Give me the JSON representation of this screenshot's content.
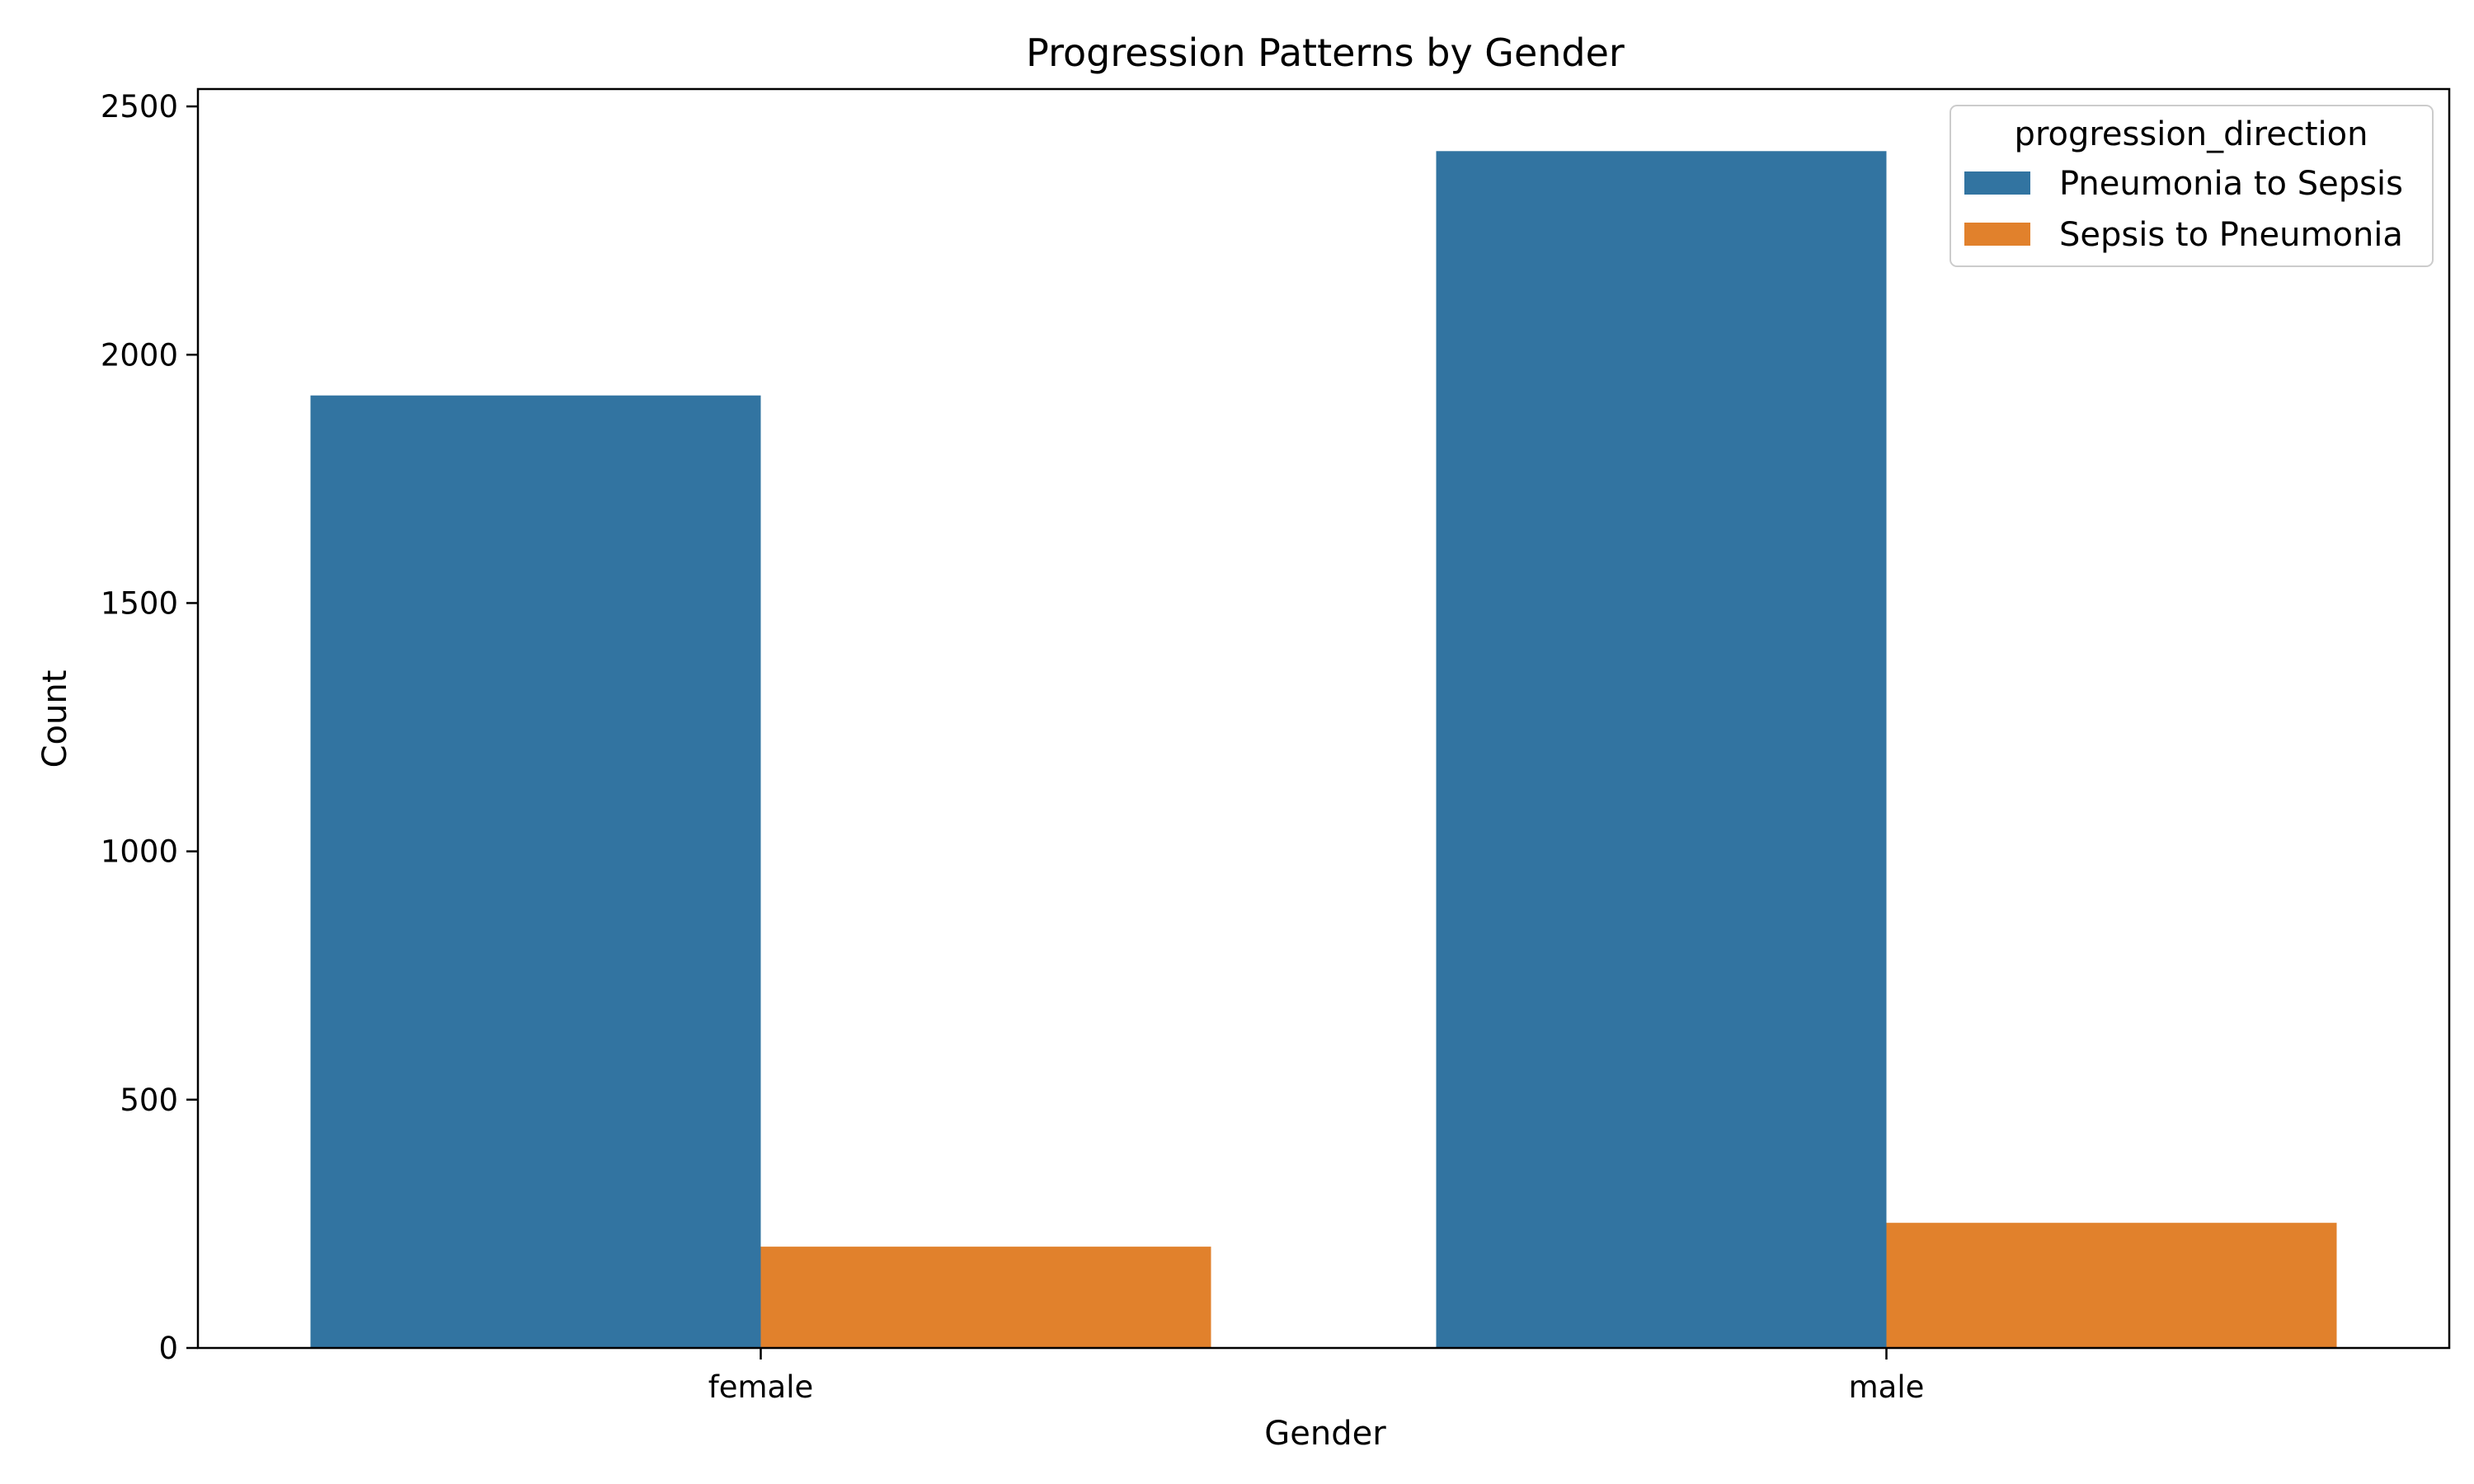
{
  "chart_data": {
    "type": "bar",
    "title": "Progression Patterns by Gender",
    "xlabel": "Gender",
    "ylabel": "Count",
    "categories": [
      "female",
      "male"
    ],
    "series": [
      {
        "name": "Pneumonia to Sepsis",
        "color": "#3274a1",
        "values": [
          1918,
          2410
        ]
      },
      {
        "name": "Sepsis to Pneumonia",
        "color": "#e1812c",
        "values": [
          204,
          252
        ]
      }
    ],
    "ylim": [
      0,
      2535
    ],
    "yticks": [
      "0",
      "500",
      "1000",
      "1500",
      "2000",
      "2500"
    ],
    "legend": {
      "title": "progression_direction",
      "position": "top-right"
    },
    "grid": false
  }
}
